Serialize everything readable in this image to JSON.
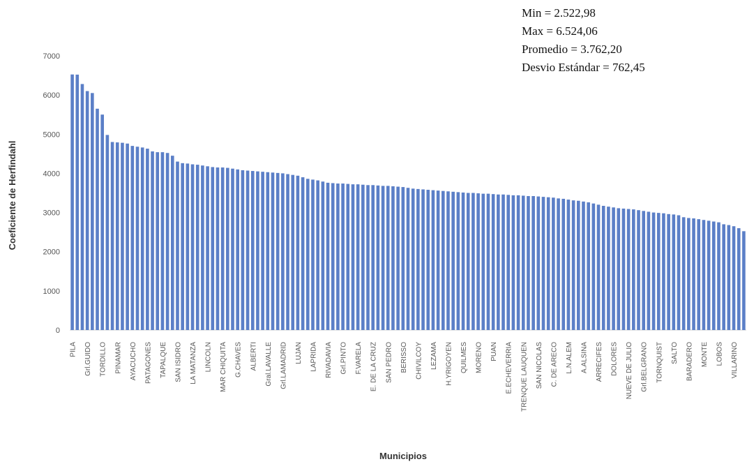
{
  "chart_data": {
    "type": "bar",
    "annotations": [
      "Min = 2.522,98",
      "Max = 6.524,06",
      "Promedio = 3.762,20",
      "Desvio Estándar = 762,45"
    ],
    "xlabel": "Municipios",
    "ylabel": "Coeficiente de Herfindahl",
    "color": "#5b7fc7",
    "ylim": [
      0,
      7000
    ],
    "yticks": [
      0,
      1000,
      2000,
      3000,
      4000,
      5000,
      6000,
      7000
    ],
    "categories": [
      "PILA",
      null,
      null,
      "Grl.GUIDO",
      null,
      null,
      "TORDILLO",
      null,
      null,
      "PINAMAR",
      null,
      null,
      "AYACUCHO",
      null,
      null,
      "PATAGONES",
      null,
      null,
      "TAPALQUE",
      null,
      null,
      "SAN ISIDRO",
      null,
      null,
      "LA MATANZA",
      null,
      null,
      "LINCOLN",
      null,
      null,
      "MAR CHIQUITA",
      null,
      null,
      "G.CHAVES",
      null,
      null,
      "ALBERTI",
      null,
      null,
      "Gral.LAVALLE",
      null,
      null,
      "Grl.LAMADRID",
      null,
      null,
      "LUJAN",
      null,
      null,
      "LAPRIDA",
      null,
      null,
      "RIVADAVIA",
      null,
      null,
      "Grl.PINTO",
      null,
      null,
      "F.VARELA",
      null,
      null,
      "E. DE LA CRUZ",
      null,
      null,
      "SAN PEDRO",
      null,
      null,
      "BERISSO",
      null,
      null,
      "CHIVILCOY",
      null,
      null,
      "LEZAMA",
      null,
      null,
      "H.YRIGOYEN",
      null,
      null,
      "QUILMES",
      null,
      null,
      "MORENO",
      null,
      null,
      "PUAN",
      null,
      null,
      "E.ECHEVERRIA",
      null,
      null,
      "TRENQUE LAUQUEN",
      null,
      null,
      "SAN NICOLAS",
      null,
      null,
      "C. DE ARECO",
      null,
      null,
      "L.N.ALEM",
      null,
      null,
      "A.ALSINA",
      null,
      null,
      "ARRECIFES",
      null,
      null,
      "DOLORES",
      null,
      null,
      "NUEVE DE JULIO",
      null,
      null,
      "Grl.BELGRANO",
      null,
      null,
      "TORNQUIST",
      null,
      null,
      "SALTO",
      null,
      null,
      "BARADERO",
      null,
      null,
      "MONTE",
      null,
      null,
      "LOBOS",
      null,
      null,
      "VILLARINO",
      null,
      null
    ],
    "values": [
      6524,
      6520,
      6280,
      6100,
      6050,
      5650,
      5500,
      4980,
      4800,
      4790,
      4780,
      4760,
      4700,
      4680,
      4660,
      4630,
      4560,
      4540,
      4540,
      4520,
      4450,
      4300,
      4260,
      4250,
      4230,
      4220,
      4200,
      4180,
      4160,
      4150,
      4150,
      4140,
      4120,
      4100,
      4080,
      4070,
      4060,
      4050,
      4040,
      4030,
      4020,
      4010,
      4000,
      3980,
      3960,
      3940,
      3900,
      3860,
      3840,
      3820,
      3790,
      3760,
      3750,
      3740,
      3740,
      3730,
      3720,
      3720,
      3710,
      3700,
      3700,
      3690,
      3680,
      3680,
      3670,
      3660,
      3650,
      3630,
      3610,
      3600,
      3590,
      3580,
      3570,
      3560,
      3550,
      3540,
      3530,
      3520,
      3510,
      3500,
      3500,
      3490,
      3480,
      3480,
      3470,
      3460,
      3460,
      3450,
      3440,
      3440,
      3430,
      3420,
      3420,
      3410,
      3400,
      3390,
      3380,
      3360,
      3350,
      3330,
      3310,
      3300,
      3280,
      3260,
      3230,
      3200,
      3170,
      3150,
      3130,
      3110,
      3100,
      3090,
      3080,
      3060,
      3040,
      3020,
      3000,
      2990,
      2980,
      2960,
      2950,
      2930,
      2880,
      2860,
      2850,
      2830,
      2810,
      2790,
      2770,
      2750,
      2700,
      2680,
      2650,
      2600,
      2523
    ]
  }
}
